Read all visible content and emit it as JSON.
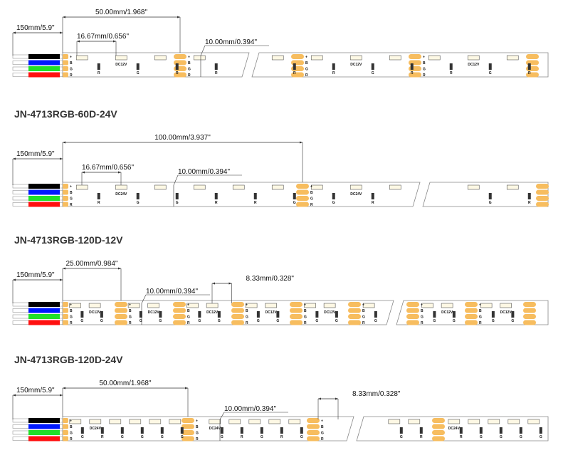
{
  "colors": {
    "pad": "#f7bd5f",
    "wire_black": "#000000",
    "wire_blue": "#0019ff",
    "wire_green": "#22e02a",
    "wire_red": "#ff1010",
    "strip_outline": "#888888",
    "led_fill": "#fdf8e4"
  },
  "pin_labels": [
    "+",
    "B",
    "G",
    "R"
  ],
  "strips": [
    {
      "title": "",
      "wire_length": "150mm/5.9\"",
      "segment_length": "50.00mm/1.968\"",
      "led_pitch": "16.67mm/0.656\"",
      "width": "10.00mm/0.394\"",
      "voltage": "DC12V",
      "resistor_labels": [
        "R",
        "G",
        "R"
      ]
    },
    {
      "title": "JN-4713RGB-60D-24V",
      "wire_length": "150mm/5.9\"",
      "segment_length": "100.00mm/3.937\"",
      "led_pitch": "16.67mm/0.656\"",
      "width": "10.00mm/0.394\"",
      "voltage": "DC24V",
      "resistor_labels": [
        "R",
        "G",
        "G",
        "R"
      ]
    },
    {
      "title": "JN-4713RGB-120D-12V",
      "wire_length": "150mm/5.9\"",
      "segment_length": "25.00mm/0.984\"",
      "led_pitch": "8.33mm/0.328\"",
      "width": "10.00mm/0.394\"",
      "voltage": "DC12V",
      "resistor_labels": [
        "G",
        "G",
        "R"
      ]
    },
    {
      "title": "JN-4713RGB-120D-24V",
      "wire_length": "150mm/5.9\"",
      "segment_length": "50.00mm/1.968\"",
      "led_pitch": "8.33mm/0.328\"",
      "width": "10.00mm/0.394\"",
      "voltage": "DC24V",
      "resistor_labels": [
        "G",
        "R",
        "G",
        "G",
        "G",
        "G",
        "R",
        "G",
        "R"
      ]
    }
  ]
}
